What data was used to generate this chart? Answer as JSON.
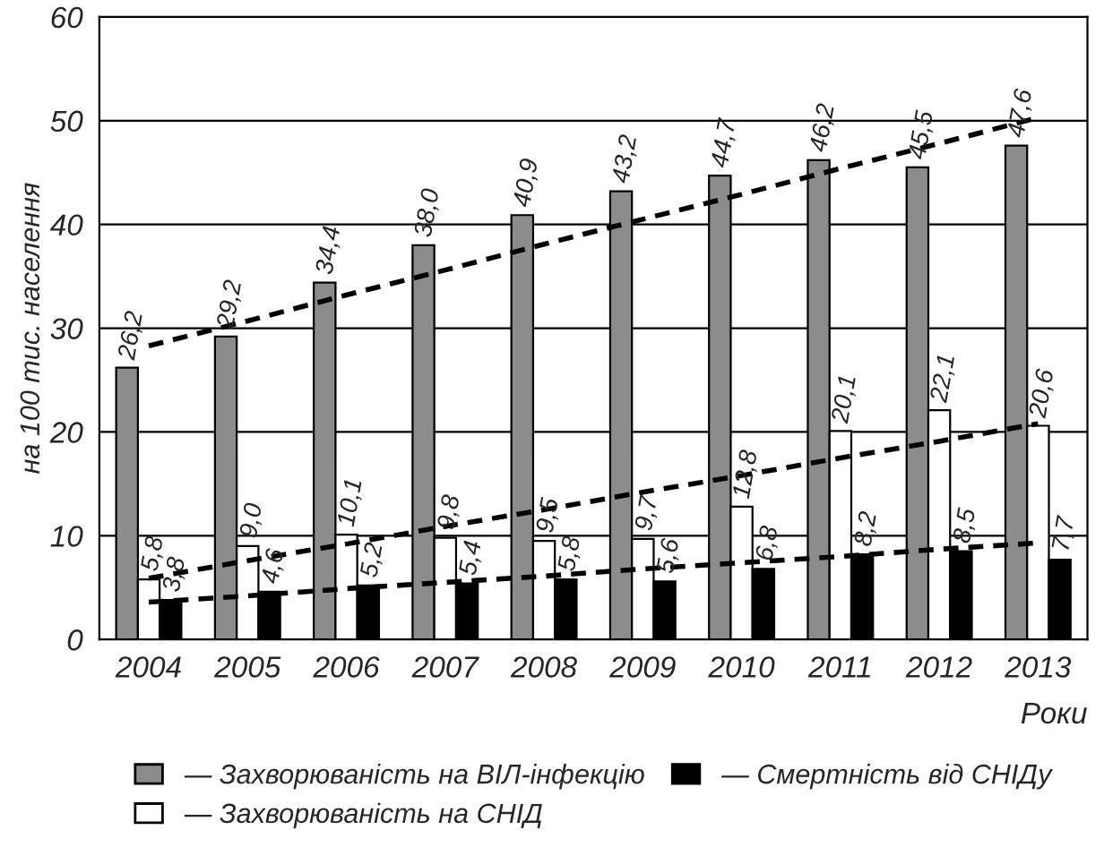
{
  "chart_data": {
    "type": "bar",
    "xlabel": "Роки",
    "ylabel": "на 100 тис. населення",
    "categories": [
      "2004",
      "2005",
      "2006",
      "2007",
      "2008",
      "2009",
      "2010",
      "2011",
      "2012",
      "2013"
    ],
    "series": [
      {
        "name": "— Захворюваність на ВІЛ-інфекцію",
        "color": "#8c8c8c",
        "values": [
          26.2,
          29.2,
          34.4,
          38.0,
          40.9,
          43.2,
          44.7,
          46.2,
          45.5,
          47.6
        ],
        "value_labels": [
          "26,2",
          "29,2",
          "34,4",
          "38,0",
          "40,9",
          "43,2",
          "44,7",
          "46,2",
          "45,5",
          "47,6"
        ]
      },
      {
        "name": "— Захворюваність на СНІД",
        "color": "#ffffff",
        "values": [
          5.8,
          9.0,
          10.1,
          9.8,
          9.5,
          9.7,
          12.8,
          20.1,
          22.1,
          20.6
        ],
        "value_labels": [
          "5,8",
          "9,0",
          "10,1",
          "9,8",
          "9,5",
          "9,7",
          "12,8",
          "20,1",
          "22,1",
          "20,6"
        ]
      },
      {
        "name": "— Смертність від СНІДу",
        "color": "#000000",
        "values": [
          3.8,
          4.6,
          5.2,
          5.4,
          5.8,
          5.6,
          6.8,
          8.2,
          8.5,
          7.7
        ],
        "value_labels": [
          "3,8",
          "4,6",
          "5,2",
          "5,4",
          "5,8",
          "5,6",
          "6,8",
          "8,2",
          "8,5",
          "7,7"
        ]
      },
      {
        "type": "line",
        "color": "#000000",
        "line_style": "dashed",
        "values": [
          28.3,
          30.7,
          33.2,
          35.6,
          38.1,
          40.5,
          42.9,
          45.4,
          47.8,
          50.3
        ]
      },
      {
        "type": "line",
        "color": "#000000",
        "line_style": "dashed",
        "values": [
          5.9,
          7.6,
          9.2,
          10.9,
          12.5,
          14.2,
          15.8,
          17.5,
          19.1,
          20.8
        ]
      },
      {
        "type": "line",
        "color": "#000000",
        "line_style": "dashed",
        "values": [
          3.6,
          4.2,
          4.9,
          5.5,
          6.1,
          6.8,
          7.4,
          8.0,
          8.7,
          9.3
        ]
      }
    ],
    "ylim": [
      0,
      60
    ],
    "yticks": [
      0,
      10,
      20,
      30,
      40,
      50,
      60
    ],
    "grid": "y",
    "legend": "bottom"
  }
}
